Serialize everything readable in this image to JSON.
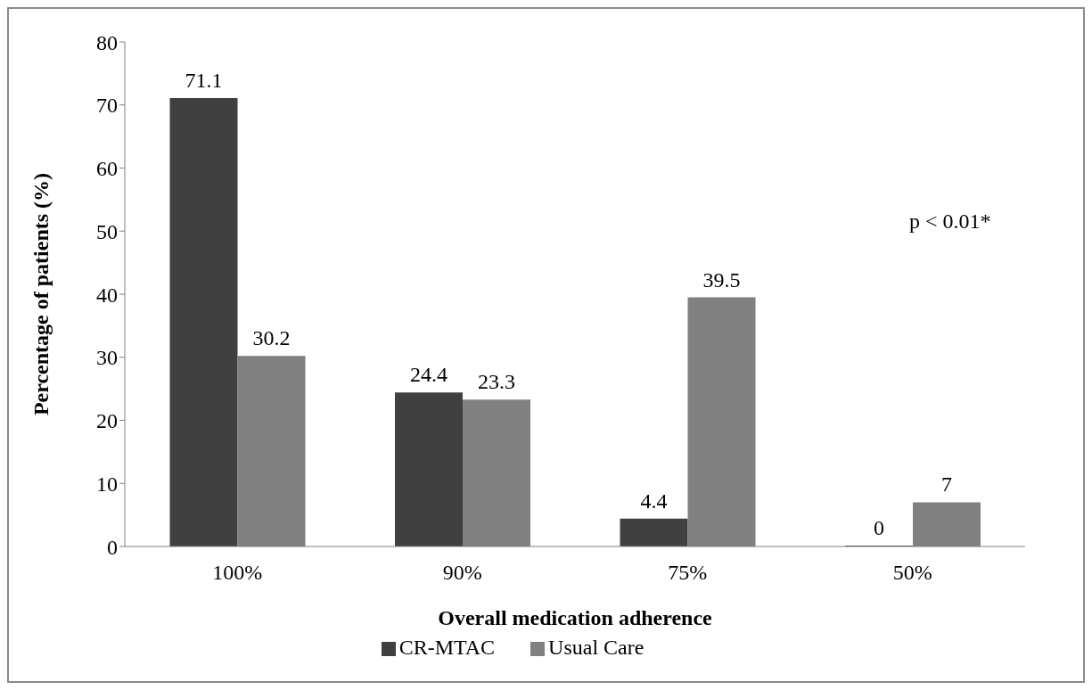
{
  "chart_data": {
    "type": "bar",
    "xlabel": "Overall medication adherence",
    "ylabel": "Percentage of patients (%)",
    "categories": [
      "100%",
      "90%",
      "75%",
      "50%"
    ],
    "series": [
      {
        "name": "CR-MTAC",
        "color": "#404040",
        "values": [
          71.1,
          24.4,
          4.4,
          0
        ]
      },
      {
        "name": "Usual Care",
        "color": "#808080",
        "values": [
          30.2,
          23.3,
          39.5,
          7
        ]
      }
    ],
    "ylim": [
      0,
      80
    ],
    "yticks": [
      0,
      10,
      20,
      30,
      40,
      50,
      60,
      70,
      80
    ],
    "grid": false,
    "legend": "bottom",
    "data_labels": true,
    "annotations": [
      "p < 0.01*"
    ]
  }
}
